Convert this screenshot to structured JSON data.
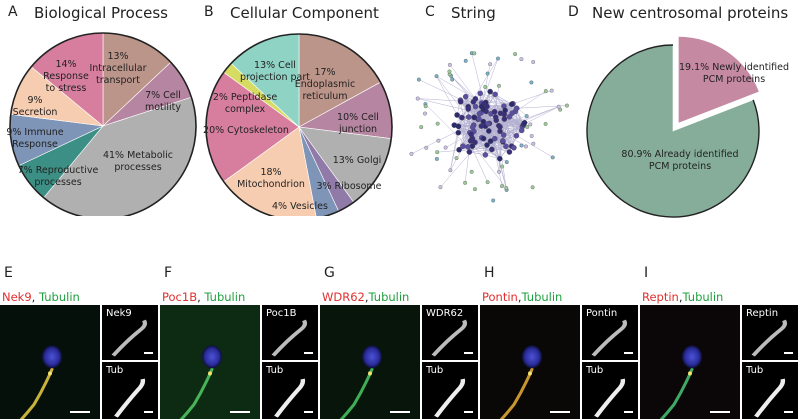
{
  "colors": {
    "pink": "#d77e9e",
    "brown": "#bc958a",
    "mauve": "#b685a1",
    "peach": "#f7cdb1",
    "steel": "#7f95b7",
    "teal": "#3c8f84",
    "grey": "#b0b0b0",
    "lime": "#d6dc62",
    "mint": "#8fd3c4",
    "purple": "#8f7aa8",
    "pcm_pink": "#c589a2",
    "pcm_green": "#86ad9a"
  },
  "panelA": {
    "letter": "A",
    "title": "Biological Process"
  },
  "panelB": {
    "letter": "B",
    "title": "Cellular Component"
  },
  "panelC": {
    "letter": "C",
    "title": "String"
  },
  "panelD": {
    "letter": "D",
    "title": "New centrosomal proteins"
  },
  "chart_data": [
    {
      "type": "pie",
      "title": "Biological Process",
      "slices": [
        {
          "label": "Intracellular transport",
          "value": 13
        },
        {
          "label": "Cell motility",
          "value": 7
        },
        {
          "label": "Metabolic processes",
          "value": 41
        },
        {
          "label": "Reproductive processes",
          "value": 7
        },
        {
          "label": "Immune Response",
          "value": 9
        },
        {
          "label": "Secretion",
          "value": 9
        },
        {
          "label": "Response to stress",
          "value": 14
        }
      ]
    },
    {
      "type": "pie",
      "title": "Cellular Component",
      "slices": [
        {
          "label": "Endoplasmic reticulum",
          "value": 17
        },
        {
          "label": "Cell junction",
          "value": 10
        },
        {
          "label": "Golgi",
          "value": 13
        },
        {
          "label": "Ribosome",
          "value": 3
        },
        {
          "label": "Vesicles",
          "value": 4
        },
        {
          "label": "Mitochondrion",
          "value": 18
        },
        {
          "label": "Cytoskeleton",
          "value": 20
        },
        {
          "label": "Peptidase complex",
          "value": 2
        },
        {
          "label": "Cell projection part",
          "value": 13
        }
      ]
    },
    {
      "type": "pie",
      "title": "New centrosomal proteins",
      "slices": [
        {
          "label": "Newly identified PCM proteins",
          "value": 19.1
        },
        {
          "label": "Already identified PCM proteins",
          "value": 80.9
        }
      ]
    }
  ],
  "textA": {
    "s1a": "13%",
    "s1b": "Intracellular",
    "s1c": "transport",
    "s2a": "7% Cell",
    "s2b": "motility",
    "s3a": "41% Metabolic",
    "s3b": "processes",
    "s4a": "7% Reproductive",
    "s4b": "processes",
    "s5a": "9% Immune",
    "s5b": "Response",
    "s6a": "9%",
    "s6b": "Secretion",
    "s7a": "14%",
    "s7b": "Response",
    "s7c": "to stress"
  },
  "textB": {
    "s1a": "17%",
    "s1b": "Endoplasmic",
    "s1c": "reticulum",
    "s2a": "10% Cell",
    "s2b": "junction",
    "s3a": "13% Golgi",
    "s4a": "3% Ribosome",
    "s5a": "4% Vesicles",
    "s6a": "18%",
    "s6b": "Mitochondrion",
    "s7a": "20% Cytoskeleton",
    "s8a": "2% Peptidase",
    "s8b": "complex",
    "s9a": "13% Cell",
    "s9b": "projection part"
  },
  "textD": {
    "new_a": "19.1% Newly identified",
    "new_b": "PCM proteins",
    "old_a": "80.9% Already identified",
    "old_b": "PCM proteins"
  },
  "micro": [
    {
      "letter": "E",
      "protein": "Nek9",
      "sep": ", ",
      "tub": "Tubulin",
      "thumb1": "Nek9",
      "thumb2": "Tub"
    },
    {
      "letter": "F",
      "protein": "Poc1B",
      "sep": ", ",
      "tub": "Tubulin",
      "thumb1": "Poc1B",
      "thumb2": "Tub"
    },
    {
      "letter": "G",
      "protein": "WDR62",
      "sep": ",",
      "tub": "Tubulin",
      "thumb1": "WDR62",
      "thumb2": "Tub"
    },
    {
      "letter": "H",
      "protein": "Pontin",
      "sep": ",",
      "tub": "Tubulin",
      "thumb1": "Pontin",
      "thumb2": "Tub"
    },
    {
      "letter": "I",
      "protein": "Reptin",
      "sep": ",",
      "tub": "Tubulin",
      "thumb1": "Reptin",
      "thumb2": "Tub"
    }
  ]
}
